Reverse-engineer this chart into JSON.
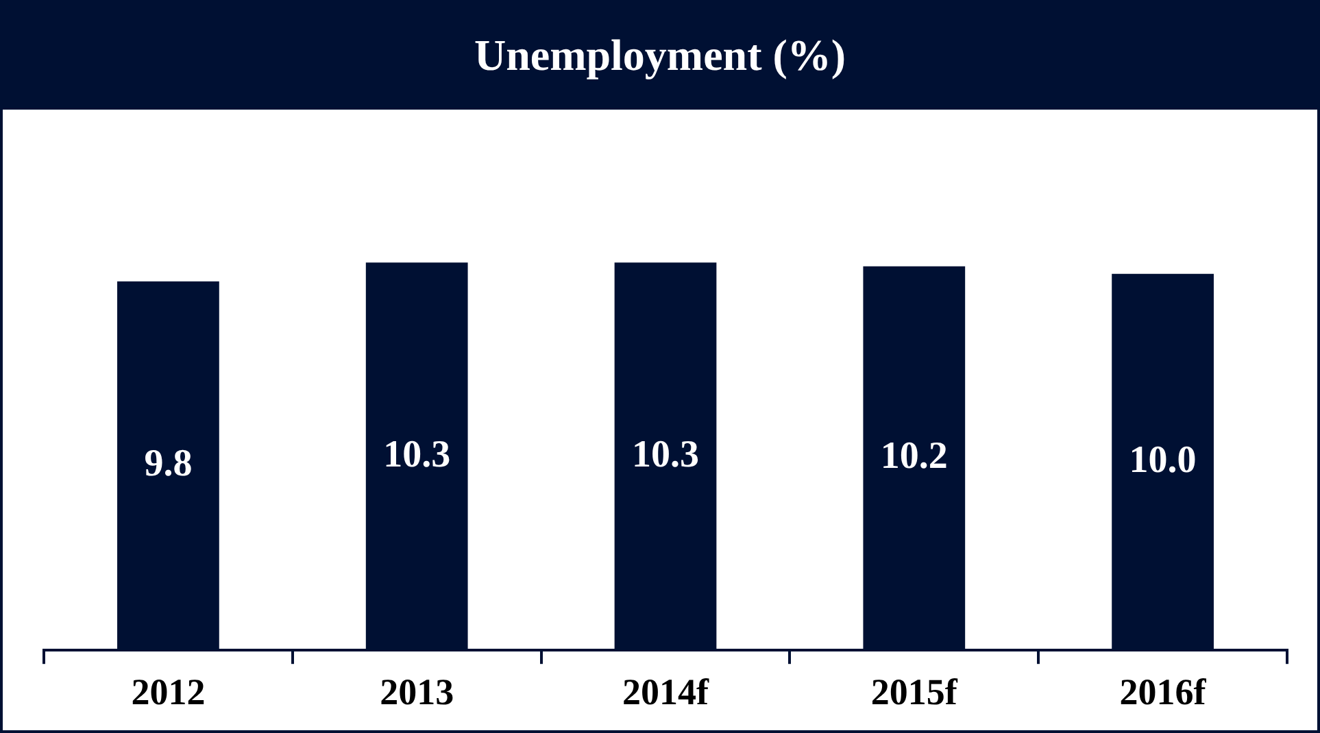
{
  "chart_data": {
    "type": "bar",
    "title": "Unemployment (%)",
    "categories": [
      "2012",
      "2013",
      "2014f",
      "2015f",
      "2016f"
    ],
    "values": [
      9.8,
      10.3,
      10.3,
      10.2,
      10.0
    ],
    "color": "#001033",
    "value_labels": [
      "9.8",
      "10.3",
      "10.3",
      "10.2",
      "10.0"
    ],
    "tick_labels": "x",
    "legend": false,
    "grid": false
  }
}
